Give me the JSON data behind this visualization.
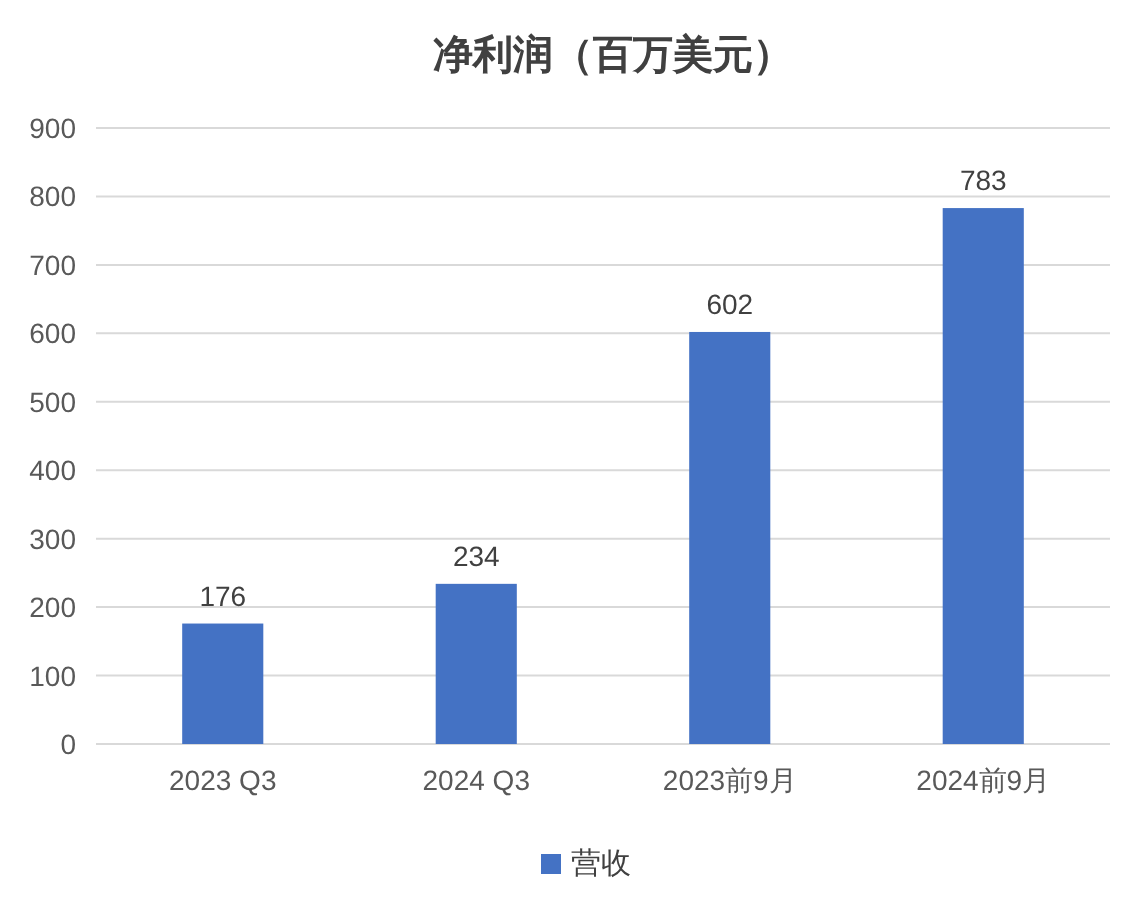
{
  "chart_data": {
    "type": "bar",
    "title": "净利润（百万美元）",
    "categories": [
      "2023 Q3",
      "2024 Q3",
      "2023前9月",
      "2024前9月"
    ],
    "series": [
      {
        "name": "营收",
        "color": "#4472c4",
        "values": [
          176,
          234,
          602,
          783
        ]
      }
    ],
    "ylim": [
      0,
      900
    ],
    "yticks": [
      0,
      100,
      200,
      300,
      400,
      500,
      600,
      700,
      800,
      900
    ],
    "grid": "y",
    "legend": "bottom",
    "data_labels": true
  }
}
